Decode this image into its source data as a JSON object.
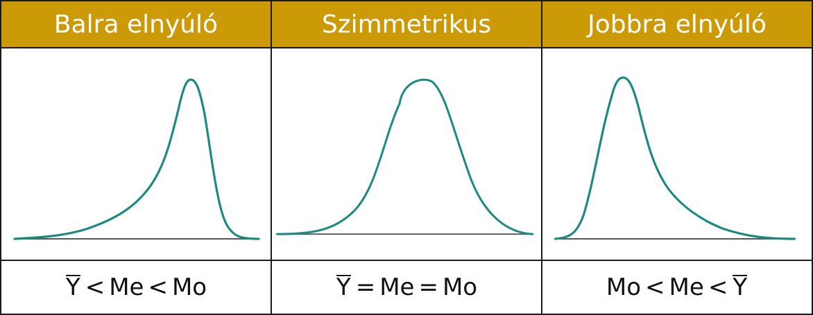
{
  "headers": [
    "Balra elnyúló",
    "Szimmetrikus",
    "Jobbra elnyúló"
  ],
  "relations": [
    {
      "a": "Y",
      "a_bar": true,
      "op1": "<",
      "b": "Me",
      "op2": "<",
      "c": "Mo",
      "c_bar": false
    },
    {
      "a": "Y",
      "a_bar": true,
      "op1": "=",
      "b": "Me",
      "op2": "=",
      "c": "Mo",
      "c_bar": false
    },
    {
      "a": "Mo",
      "a_bar": false,
      "op1": "<",
      "b": "Me",
      "op2": "<",
      "c": "Y",
      "c_bar": true
    }
  ],
  "colors": {
    "header_bg": "#cc9a07",
    "curve": "#1b8a80",
    "border": "#1a1a1a"
  }
}
